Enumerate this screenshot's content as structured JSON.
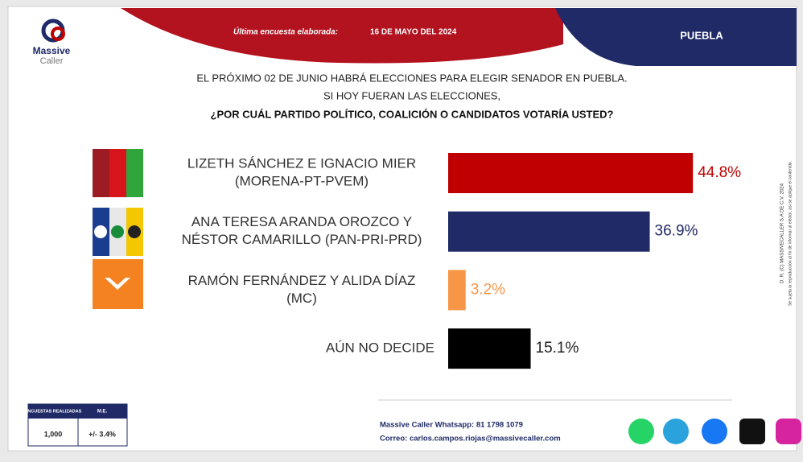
{
  "header": {
    "brand": [
      "Massive",
      "Caller"
    ],
    "survey_label": "Última encuesta elaborada:",
    "survey_date": "16 DE MAYO DEL 2024",
    "region": "PUEBLA"
  },
  "question": [
    "EL PRÓXIMO 02 DE JUNIO HABRÁ ELECCIONES PARA ELEGIR SENADOR EN PUEBLA.",
    "SI HOY FUERAN LAS ELECCIONES,",
    "¿POR CUÁL PARTIDO POLÍTICO, COALICIÓN O CANDIDATOS VOTARÍA USTED?"
  ],
  "chart_data": {
    "type": "bar",
    "orientation": "horizontal",
    "categories": [
      [
        "LIZETH SÁNCHEZ E IGNACIO MIER",
        "(MORENA-PT-PVEM)"
      ],
      [
        "ANA TERESA ARANDA OROZCO  Y",
        "NÉSTOR CAMARILLO (PAN-PRI-PRD)"
      ],
      [
        "RAMÓN FERNÁNDEZ Y ALIDA DÍAZ",
        "(MC)"
      ],
      [
        "AÚN NO DECIDE"
      ]
    ],
    "values": [
      44.8,
      36.9,
      3.2,
      15.1
    ],
    "value_labels": [
      "44.8%",
      "36.9%",
      "3.2%",
      "15.1%"
    ],
    "colors": [
      "#c00000",
      "#1f2a66",
      "#f79646",
      "#000000"
    ],
    "label_colors": [
      "#c00000",
      "#1f2a66",
      "#f79646",
      "#222222"
    ]
  },
  "footer": {
    "table": {
      "headers": [
        "ENCUESTAS REALIZADAS",
        "M.E."
      ],
      "values": [
        "1,000",
        "+/- 3.4%"
      ]
    },
    "contact": [
      "Massive Caller Whatsapp: 81 1798 1079",
      "Correo: carlos.campos.riojas@massivecaller.com"
    ]
  },
  "side_notes": [
    "D. R. (C) MASSIVECALLER S.A DE C.V. 2024",
    "Se sujeta la reproducción al fin de informar al elector, así se aplique el contenido."
  ]
}
